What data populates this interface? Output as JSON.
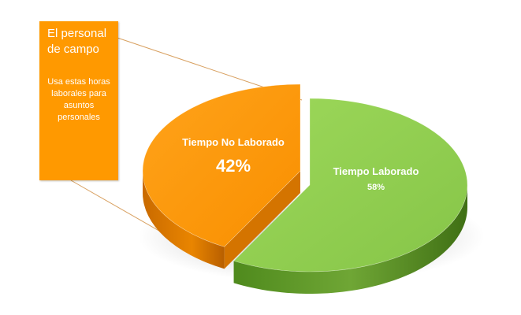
{
  "chart_data": {
    "type": "pie",
    "style": "3d-exploded",
    "slices": [
      {
        "label": "Tiempo Laborado",
        "value": 58,
        "value_label": "58%",
        "color": "#92d050"
      },
      {
        "label": "Tiempo No Laborado",
        "value": 42,
        "value_label": "42%",
        "color": "#ff9900"
      }
    ],
    "exploded_slice": "Tiempo No Laborado"
  },
  "callout": {
    "title": "El personal de campo",
    "body": "Usa estas horas laborales para asuntos personales",
    "color": "#ff9900",
    "points_to": "Tiempo No Laborado"
  }
}
